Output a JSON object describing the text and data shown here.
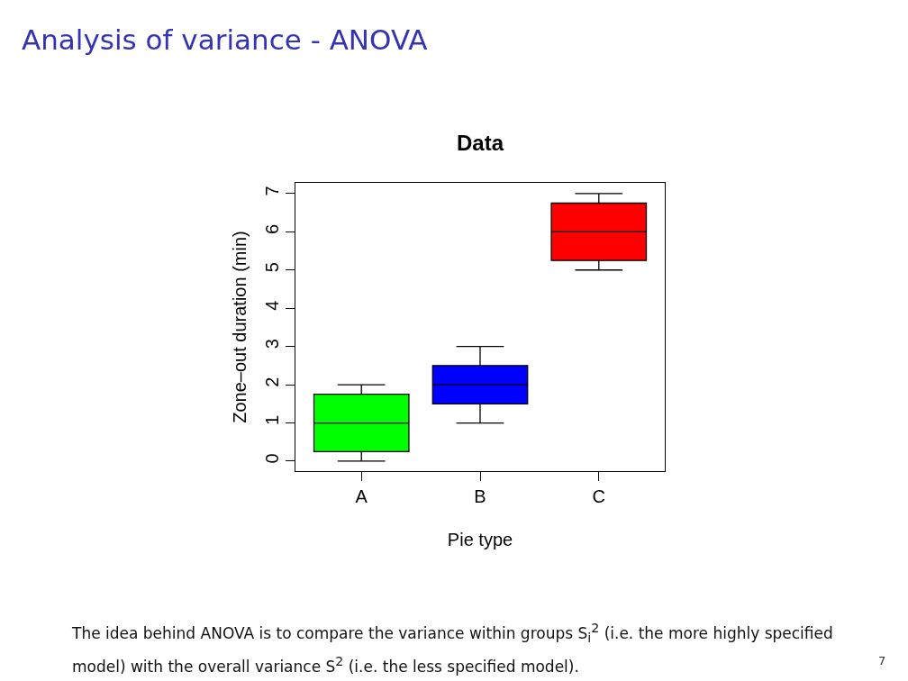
{
  "chart_data": {
    "type": "box",
    "title": "Analysis of variance - ANOVA",
    "subtitle": "Data",
    "xlabel": "Pie type",
    "ylabel": "Zone–out duration (min)",
    "categories": [
      "A",
      "B",
      "C"
    ],
    "boxes": [
      {
        "low": 0,
        "q1": 0.25,
        "median": 1,
        "q3": 1.75,
        "high": 2
      },
      {
        "low": 1,
        "q1": 1.5,
        "median": 2,
        "q3": 2.5,
        "high": 3
      },
      {
        "low": 5,
        "q1": 5.25,
        "median": 6,
        "q3": 6.75,
        "high": 7
      }
    ],
    "colors": [
      "#00ff00",
      "#0000ff",
      "#ff0000"
    ],
    "ylim": [
      -0.26,
      7.28
    ],
    "yticks": [
      0,
      1,
      2,
      3,
      4,
      5,
      6,
      7
    ],
    "grid": false,
    "legend": false,
    "annotations": [
      "The idea behind ANOVA is to compare the variance within groups S$_{i}$$^{2}$ (i.e. the more highly specified model) with the overall variance S$^{2}$ (i.e. the less specified model).",
      "7"
    ]
  }
}
